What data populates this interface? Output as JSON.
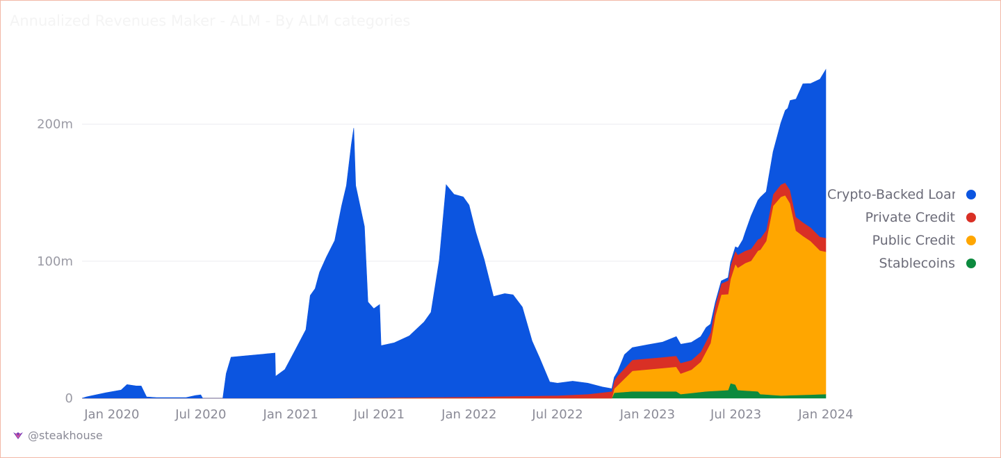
{
  "chart_data": {
    "type": "area",
    "stacked": true,
    "title": "Annualized Revenues   Maker - ALM - By ALM categories",
    "xlabel": "",
    "ylabel": "",
    "xlim": [
      "2019-11-01",
      "2024-01-01"
    ],
    "ylim": [
      0,
      245
    ],
    "y_ticks": [
      {
        "value": 0,
        "label": "0"
      },
      {
        "value": 100,
        "label": "100m"
      },
      {
        "value": 200,
        "label": "200m"
      }
    ],
    "x_ticks": [
      {
        "value": "2020-01-01",
        "label": "Jan 2020"
      },
      {
        "value": "2020-07-01",
        "label": "Jul 2020"
      },
      {
        "value": "2021-01-01",
        "label": "Jan 2021"
      },
      {
        "value": "2021-07-01",
        "label": "Jul 2021"
      },
      {
        "value": "2022-01-01",
        "label": "Jan 2022"
      },
      {
        "value": "2022-07-01",
        "label": "Jul 2022"
      },
      {
        "value": "2023-01-01",
        "label": "Jan 2023"
      },
      {
        "value": "2023-07-01",
        "label": "Jul 2023"
      },
      {
        "value": "2024-01-01",
        "label": "Jan 2024"
      }
    ],
    "grid": true,
    "legend_position": "right",
    "series": [
      {
        "name": "Stablecoins",
        "color": "#0c8a3e",
        "points": [
          [
            "2019-11-01",
            0
          ],
          [
            "2022-10-20",
            0
          ],
          [
            "2022-10-25",
            4
          ],
          [
            "2022-12-01",
            5
          ],
          [
            "2023-03-01",
            5
          ],
          [
            "2023-03-10",
            3
          ],
          [
            "2023-05-01",
            5
          ],
          [
            "2023-06-15",
            6
          ],
          [
            "2023-06-20",
            11
          ],
          [
            "2023-06-30",
            10
          ],
          [
            "2023-07-05",
            6
          ],
          [
            "2023-08-15",
            5
          ],
          [
            "2023-08-20",
            3
          ],
          [
            "2023-10-01",
            2
          ],
          [
            "2024-01-01",
            3
          ]
        ]
      },
      {
        "name": "Public Credit",
        "color": "#ffa600",
        "points": [
          [
            "2019-11-01",
            0
          ],
          [
            "2022-10-20",
            0
          ],
          [
            "2022-10-25",
            3
          ],
          [
            "2022-12-01",
            15
          ],
          [
            "2023-02-01",
            17
          ],
          [
            "2023-03-01",
            18
          ],
          [
            "2023-03-10",
            15
          ],
          [
            "2023-04-01",
            17
          ],
          [
            "2023-04-20",
            22
          ],
          [
            "2023-05-10",
            35
          ],
          [
            "2023-05-20",
            55
          ],
          [
            "2023-06-01",
            70
          ],
          [
            "2023-06-15",
            70
          ],
          [
            "2023-06-30",
            88
          ],
          [
            "2023-07-20",
            93
          ],
          [
            "2023-08-01",
            95
          ],
          [
            "2023-09-01",
            112
          ],
          [
            "2023-09-15",
            138
          ],
          [
            "2023-10-01",
            145
          ],
          [
            "2023-10-10",
            146
          ],
          [
            "2023-10-20",
            140
          ],
          [
            "2023-11-01",
            120
          ],
          [
            "2023-11-15",
            116
          ],
          [
            "2023-12-01",
            112
          ],
          [
            "2023-12-20",
            105
          ],
          [
            "2024-01-01",
            104
          ]
        ]
      },
      {
        "name": "Private Credit",
        "color": "#d93025",
        "points": [
          [
            "2019-11-01",
            0
          ],
          [
            "2021-03-01",
            0
          ],
          [
            "2022-01-01",
            1
          ],
          [
            "2022-07-01",
            2
          ],
          [
            "2022-09-01",
            3
          ],
          [
            "2022-10-20",
            5
          ],
          [
            "2022-11-01",
            7
          ],
          [
            "2022-12-01",
            8
          ],
          [
            "2023-03-01",
            8
          ],
          [
            "2023-04-01",
            7
          ],
          [
            "2023-06-01",
            8
          ],
          [
            "2023-06-15",
            10
          ],
          [
            "2023-07-20",
            9
          ],
          [
            "2023-09-01",
            8
          ],
          [
            "2023-10-01",
            9
          ],
          [
            "2023-11-01",
            10
          ],
          [
            "2023-12-01",
            10
          ],
          [
            "2024-01-01",
            10
          ]
        ]
      },
      {
        "name": "Crypto-Backed Loans",
        "color": "#0c55e0",
        "points": [
          [
            "2019-11-01",
            0
          ],
          [
            "2019-11-10",
            1
          ],
          [
            "2019-12-20",
            4
          ],
          [
            "2020-01-20",
            6
          ],
          [
            "2020-02-01",
            10
          ],
          [
            "2020-02-20",
            9
          ],
          [
            "2020-03-01",
            9
          ],
          [
            "2020-03-12",
            1
          ],
          [
            "2020-04-01",
            0.5
          ],
          [
            "2020-06-01",
            0.5
          ],
          [
            "2020-06-20",
            2
          ],
          [
            "2020-07-01",
            2.5
          ],
          [
            "2020-07-05",
            0
          ],
          [
            "2020-08-15",
            0
          ],
          [
            "2020-08-22",
            18
          ],
          [
            "2020-09-01",
            30
          ],
          [
            "2020-10-01",
            31
          ],
          [
            "2020-11-01",
            32
          ],
          [
            "2020-11-30",
            33
          ],
          [
            "2020-12-01",
            16
          ],
          [
            "2020-12-20",
            21
          ],
          [
            "2021-01-10",
            35
          ],
          [
            "2021-02-01",
            50
          ],
          [
            "2021-02-10",
            75
          ],
          [
            "2021-02-20",
            80
          ],
          [
            "2021-03-01",
            92
          ],
          [
            "2021-03-15",
            103
          ],
          [
            "2021-04-01",
            115
          ],
          [
            "2021-04-15",
            140
          ],
          [
            "2021-04-25",
            155
          ],
          [
            "2021-05-05",
            185
          ],
          [
            "2021-05-10",
            197
          ],
          [
            "2021-05-14",
            155
          ],
          [
            "2021-05-20",
            145
          ],
          [
            "2021-06-01",
            125
          ],
          [
            "2021-06-08",
            70
          ],
          [
            "2021-06-20",
            65
          ],
          [
            "2021-07-02",
            68
          ],
          [
            "2021-07-05",
            38
          ],
          [
            "2021-08-01",
            40
          ],
          [
            "2021-09-01",
            45
          ],
          [
            "2021-10-01",
            55
          ],
          [
            "2021-10-15",
            62
          ],
          [
            "2021-11-01",
            100
          ],
          [
            "2021-11-10",
            135
          ],
          [
            "2021-11-15",
            155
          ],
          [
            "2021-12-01",
            148
          ],
          [
            "2021-12-20",
            146
          ],
          [
            "2022-01-01",
            140
          ],
          [
            "2022-01-15",
            120
          ],
          [
            "2022-02-01",
            100
          ],
          [
            "2022-02-20",
            73
          ],
          [
            "2022-03-15",
            75
          ],
          [
            "2022-04-01",
            74
          ],
          [
            "2022-04-20",
            65
          ],
          [
            "2022-05-10",
            40
          ],
          [
            "2022-05-25",
            28
          ],
          [
            "2022-06-15",
            10
          ],
          [
            "2022-07-01",
            9
          ],
          [
            "2022-08-01",
            10
          ],
          [
            "2022-09-01",
            8
          ],
          [
            "2022-10-01",
            4
          ],
          [
            "2022-10-20",
            2
          ],
          [
            "2022-11-01",
            3
          ],
          [
            "2022-11-15",
            10
          ],
          [
            "2022-12-01",
            9
          ],
          [
            "2023-01-01",
            10
          ],
          [
            "2023-02-01",
            11
          ],
          [
            "2023-03-01",
            14
          ],
          [
            "2023-04-01",
            13
          ],
          [
            "2023-05-01",
            10
          ],
          [
            "2023-05-20",
            2
          ],
          [
            "2023-06-15",
            2
          ],
          [
            "2023-06-30",
            3
          ],
          [
            "2023-07-15",
            9
          ],
          [
            "2023-08-01",
            24
          ],
          [
            "2023-08-20",
            30
          ],
          [
            "2023-09-01",
            28
          ],
          [
            "2023-09-15",
            31
          ],
          [
            "2023-10-01",
            45
          ],
          [
            "2023-10-15",
            57
          ],
          [
            "2023-11-01",
            86
          ],
          [
            "2023-11-15",
            101
          ],
          [
            "2023-12-01",
            105
          ],
          [
            "2023-12-20",
            115
          ],
          [
            "2024-01-01",
            123
          ]
        ]
      }
    ]
  },
  "legend": [
    {
      "label": "Crypto-Backed Loans",
      "color": "#0c55e0"
    },
    {
      "label": "Private Credit",
      "color": "#d93025"
    },
    {
      "label": "Public Credit",
      "color": "#ffa600"
    },
    {
      "label": "Stablecoins",
      "color": "#0c8a3e"
    }
  ],
  "credit": "@steakhouse"
}
